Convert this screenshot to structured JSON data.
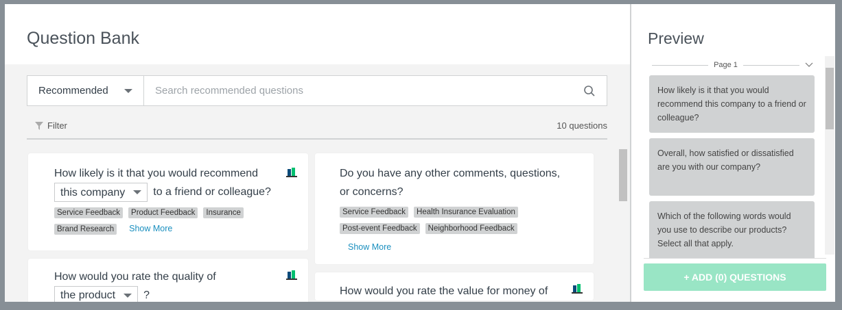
{
  "question_bank": {
    "title": "Question Bank",
    "category_select": "Recommended",
    "search_placeholder": "Search recommended questions",
    "filter_label": "Filter",
    "count": "10 questions",
    "show_more": "Show More",
    "cards": [
      {
        "text_before": "How likely is it that you would recommend",
        "dropdown": "this company",
        "text_after": "to a friend or colleague?",
        "tags": [
          "Service Feedback",
          "Product Feedback",
          "Insurance",
          "Brand Research"
        ]
      },
      {
        "text": "Do you have any other comments, questions, or concerns?",
        "tags": [
          "Service Feedback",
          "Health Insurance Evaluation",
          "Post-event Feedback",
          "Neighborhood Feedback"
        ]
      },
      {
        "text_before": "How would you rate the quality of",
        "dropdown": "the product",
        "text_after": "?"
      },
      {
        "text_before": "How would you rate the value for money of"
      }
    ]
  },
  "preview": {
    "title": "Preview",
    "page_label": "Page 1",
    "items": [
      "How likely is it that you would recommend this company to a friend or colleague?",
      "Overall, how satisfied or dissatisfied are you with our company?",
      "Which of the following words would you use to describe our products? Select all that apply."
    ],
    "add_button": "+ ADD (0) QUESTIONS"
  },
  "colors": {
    "accent": "#00bf6f",
    "link": "#1a8fbf",
    "add_button_disabled": "#99e5c5"
  }
}
